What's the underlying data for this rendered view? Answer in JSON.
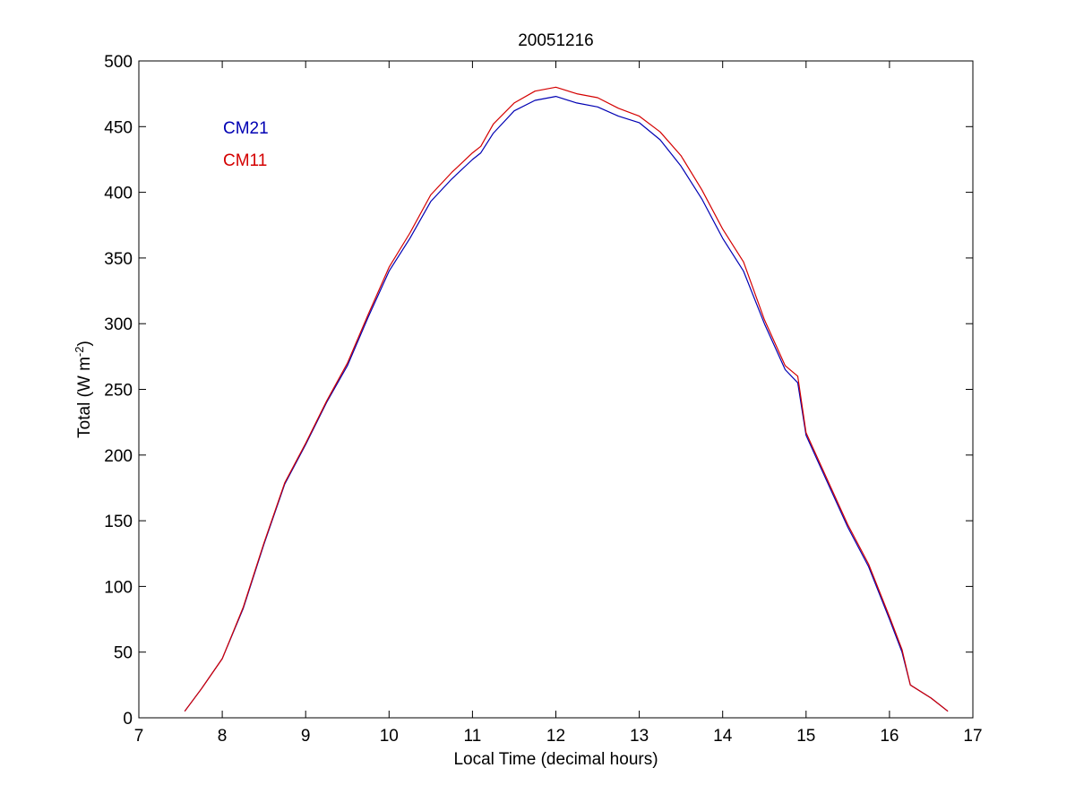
{
  "chart_data": {
    "type": "line",
    "title": "20051216",
    "xlabel": "Local Time (decimal hours)",
    "ylabel": "Total (W m",
    "ylabel_superscript": "-2",
    "ylabel_suffix": ")",
    "xlim": [
      7,
      17
    ],
    "ylim": [
      0,
      500
    ],
    "xticks": [
      7,
      8,
      9,
      10,
      11,
      12,
      13,
      14,
      15,
      16,
      17
    ],
    "yticks": [
      0,
      50,
      100,
      150,
      200,
      250,
      300,
      350,
      400,
      450,
      500
    ],
    "grid": false,
    "legend_position": "top-left",
    "x": [
      7.55,
      7.75,
      8.0,
      8.25,
      8.5,
      8.75,
      9.0,
      9.25,
      9.5,
      9.75,
      10.0,
      10.25,
      10.5,
      10.75,
      11.0,
      11.1,
      11.25,
      11.5,
      11.75,
      12.0,
      12.25,
      12.5,
      12.75,
      13.0,
      13.25,
      13.5,
      13.75,
      14.0,
      14.25,
      14.5,
      14.75,
      14.9,
      15.0,
      15.25,
      15.5,
      15.75,
      16.0,
      16.15,
      16.25,
      16.5,
      16.7
    ],
    "series": [
      {
        "name": "CM21",
        "color": "#0000b3",
        "values": [
          5,
          22,
          45,
          83,
          132,
          178,
          208,
          240,
          268,
          305,
          340,
          365,
          393,
          410,
          425,
          430,
          445,
          462,
          470,
          473,
          468,
          465,
          458,
          453,
          440,
          420,
          395,
          365,
          340,
          300,
          265,
          255,
          215,
          180,
          145,
          115,
          75,
          50,
          25,
          15,
          5
        ]
      },
      {
        "name": "CM11",
        "color": "#d40000",
        "values": [
          5,
          22,
          45,
          84,
          133,
          179,
          209,
          241,
          270,
          307,
          343,
          369,
          398,
          415,
          430,
          435,
          452,
          468,
          477,
          480,
          475,
          472,
          464,
          458,
          446,
          428,
          402,
          372,
          347,
          303,
          268,
          260,
          217,
          182,
          147,
          117,
          77,
          52,
          25,
          15,
          5
        ]
      }
    ]
  }
}
